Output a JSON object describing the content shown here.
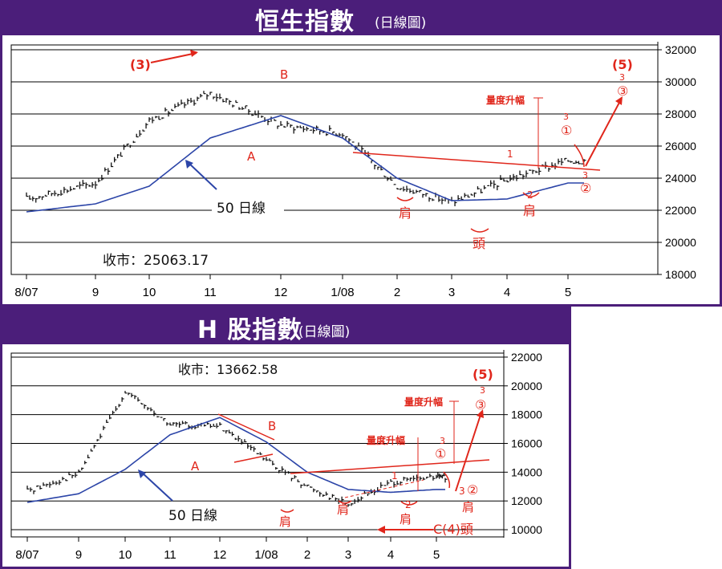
{
  "colors": {
    "brand": "#4b1e7a",
    "price": "#111111",
    "ma": "#2c45a8",
    "annotation": "#e0261b"
  },
  "charts": [
    {
      "id": "hsi",
      "title": "恒生指數",
      "subtitle": "(日線圖)",
      "close_label": "收市：25063.17",
      "ma_label": "50 日線",
      "yticks": [
        "32000",
        "30000",
        "28000",
        "26000",
        "24000",
        "22000",
        "20000",
        "18000"
      ],
      "xticks": [
        "8/07",
        "9",
        "10",
        "11",
        "12",
        "1/08",
        "2",
        "3",
        "4",
        "5"
      ]
    },
    {
      "id": "hshare",
      "title": "H 股指數",
      "subtitle": "(日線圖)",
      "close_label": "收市：13662.58",
      "ma_label": "50 日線",
      "yticks": [
        "22000",
        "20000",
        "18000",
        "16000",
        "14000",
        "12000",
        "10000"
      ],
      "xticks": [
        "8/07",
        "9",
        "10",
        "11",
        "12",
        "1/08",
        "2",
        "3",
        "4",
        "5"
      ]
    }
  ],
  "annotations": {
    "hsi": {
      "wave3": "(3)",
      "waveA": "A",
      "waveB": "B",
      "wave5": "(5)",
      "measure": "量度升幅",
      "shoulder": "肩",
      "head": "頭",
      "n1": "1",
      "n3": "3",
      "c1": "①",
      "c2": "②",
      "c3": "③",
      "n2": "2"
    },
    "hshare": {
      "waveA": "A",
      "waveB": "B",
      "wave5": "(5)",
      "measure": "量度升幅",
      "shoulder": "肩",
      "c4": "C(4)頭",
      "n1": "1",
      "n2": "2",
      "n3": "3",
      "c1": "①",
      "c2": "②",
      "c3": "③"
    }
  },
  "chart_data": [
    {
      "type": "line",
      "title": "恒生指數",
      "x": [
        "8/07",
        "9",
        "10",
        "11",
        "12",
        "1/08",
        "2",
        "3",
        "4",
        "5"
      ],
      "ylim": [
        18000,
        32500
      ],
      "series": [
        {
          "values": [
            22700,
            23700,
            27600,
            29300,
            27300,
            26800,
            23500,
            22500,
            23900,
            25100
          ]
        },
        {
          "name": "50 日線",
          "values": [
            21900,
            22400,
            23500,
            26500,
            27900,
            26500,
            24000,
            22600,
            22700,
            23700
          ]
        }
      ]
    },
    {
      "type": "line",
      "title": "H 股指數",
      "x": [
        "8/07",
        "9",
        "10",
        "11",
        "12",
        "1/08",
        "2",
        "3",
        "4",
        "5"
      ],
      "ylim": [
        9500,
        22500
      ],
      "series": [
        {
          "values": [
            12700,
            13900,
            19600,
            17300,
            17200,
            14800,
            13000,
            11800,
            13300,
            13660
          ]
        },
        {
          "name": "50 日線",
          "values": [
            11900,
            12500,
            14200,
            16600,
            17800,
            16100,
            14000,
            12800,
            12600,
            12800
          ]
        }
      ]
    }
  ]
}
